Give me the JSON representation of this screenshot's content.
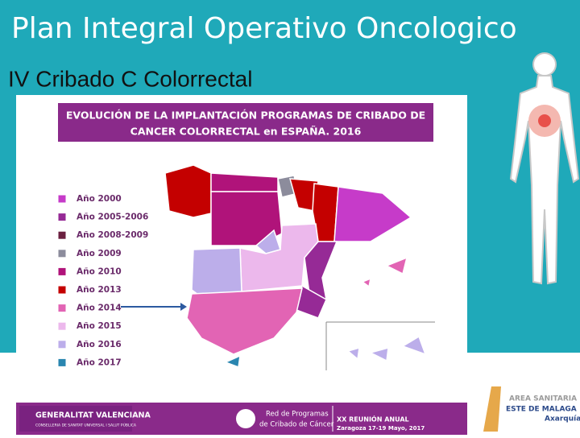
{
  "header": {
    "title": "Plan Integral Operativo Oncologico",
    "subtitle": "IV Cribado C Colorrectal"
  },
  "map": {
    "title_lines": [
      "EVOLUCIÓN DE LA IMPLANTACIÓN PROGRAMAS DE CRIBADO DE",
      "CANCER COLORRECTAL en ESPAÑA. 2016"
    ],
    "legend": [
      {
        "label": "Año 2000",
        "color": "#c63bc9"
      },
      {
        "label": "Año 2005-2006",
        "color": "#962a96"
      },
      {
        "label": "Año 2008-2009",
        "color": "#6b2040"
      },
      {
        "label": "Año 2009",
        "color": "#8c8c9c"
      },
      {
        "label": "Año 2010",
        "color": "#b0137a"
      },
      {
        "label": "Año 2013",
        "color": "#c40000"
      },
      {
        "label": "Año 2014",
        "color": "#e264b4"
      },
      {
        "label": "Año 2015",
        "color": "#ecb8ec"
      },
      {
        "label": "Año 2016",
        "color": "#bcaeea"
      },
      {
        "label": "Año 2017",
        "color": "#2a86b0"
      }
    ]
  },
  "footer": {
    "left_logo": [
      "GENERALITAT VALENCIANA",
      "CONSELLERIA DE SANITAT UNIVERSAL I SALUT PÚBLICA"
    ],
    "network": [
      "Red de Programas",
      "de Cribado de Cáncer"
    ],
    "meeting": [
      "XX REUNIÓN ANUAL",
      "Zaragoza 17-19 Mayo, 2017"
    ],
    "right_logo": [
      "AREA SANITARIA",
      "ESTE DE MALAGA",
      "Axarquía"
    ]
  }
}
